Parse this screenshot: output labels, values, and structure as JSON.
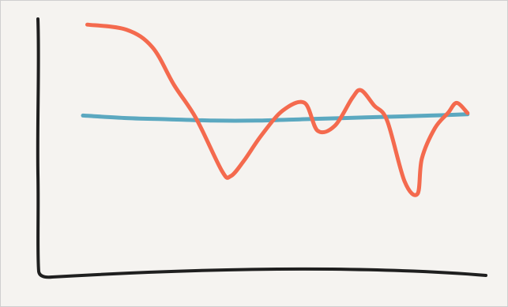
{
  "colors": {
    "background": "#f5f3f0",
    "axis": "#1f1f1f",
    "series_red": "#f46a4e",
    "series_blue": "#5ba8c0"
  },
  "chart_data": {
    "type": "line",
    "title": "",
    "xlabel": "",
    "ylabel": "",
    "grid": false,
    "legend": "none",
    "xlim": [
      0,
      100
    ],
    "ylim": [
      0,
      100
    ],
    "series": [
      {
        "color": "#f46a4e",
        "x": [
          11,
          20,
          26,
          31,
          36,
          42,
          44,
          47,
          51,
          56,
          61,
          64,
          68,
          72,
          74,
          77,
          80,
          84,
          87,
          88,
          91,
          94,
          96,
          98.5
        ],
        "y": [
          99,
          97,
          90,
          75,
          62,
          41,
          39,
          45,
          55,
          65,
          68,
          57,
          59,
          70,
          73,
          67,
          61,
          37,
          32,
          46,
          58,
          64,
          68,
          64
        ]
      },
      {
        "color": "#5ba8c0",
        "x": [
          10,
          20,
          30,
          40,
          50,
          60,
          70,
          80,
          90,
          98.5
        ],
        "y": [
          63,
          62,
          61.5,
          61,
          61,
          61.5,
          62,
          62.5,
          63,
          63.5
        ]
      }
    ]
  }
}
